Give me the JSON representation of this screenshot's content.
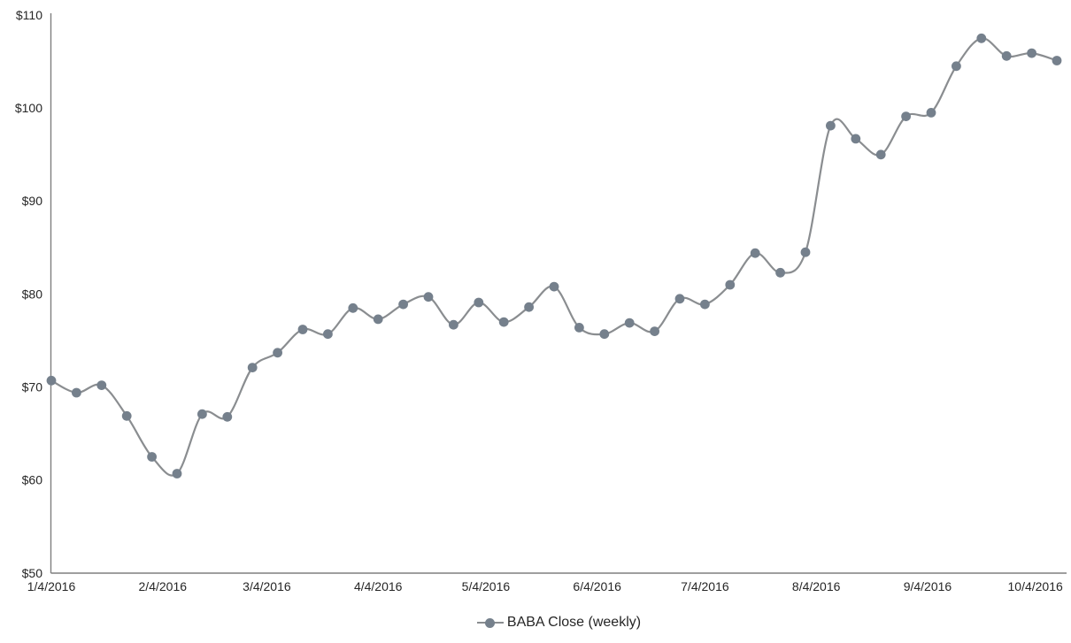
{
  "chart": {
    "legend_label": "BABA Close (weekly)",
    "colors": {
      "series_line": "#8A8D90",
      "series_marker": "#75808C",
      "axis_line": "#7F7F7F",
      "tick_text": "#262626",
      "background": "#FFFFFF"
    }
  },
  "chart_data": {
    "type": "line",
    "title": "",
    "xlabel": "",
    "ylabel": "",
    "ylim": [
      50,
      110
    ],
    "grid": false,
    "smooth": true,
    "marker": "circle",
    "legend_position": "bottom",
    "y_ticks": [
      {
        "v": 50,
        "label": "$50"
      },
      {
        "v": 60,
        "label": "$60"
      },
      {
        "v": 70,
        "label": "$70"
      },
      {
        "v": 80,
        "label": "$80"
      },
      {
        "v": 90,
        "label": "$90"
      },
      {
        "v": 100,
        "label": "$100"
      },
      {
        "v": 110,
        "label": "$110"
      }
    ],
    "x_ticks": [
      {
        "date": "1/4/2016",
        "label": "1/4/2016"
      },
      {
        "date": "2/4/2016",
        "label": "2/4/2016"
      },
      {
        "date": "3/4/2016",
        "label": "3/4/2016"
      },
      {
        "date": "4/4/2016",
        "label": "4/4/2016"
      },
      {
        "date": "5/4/2016",
        "label": "5/4/2016"
      },
      {
        "date": "6/4/2016",
        "label": "6/4/2016"
      },
      {
        "date": "7/4/2016",
        "label": "7/4/2016"
      },
      {
        "date": "8/4/2016",
        "label": "8/4/2016"
      },
      {
        "date": "9/4/2016",
        "label": "9/4/2016"
      },
      {
        "date": "10/4/2016",
        "label": "10/4/2016"
      }
    ],
    "series": [
      {
        "name": "BABA Close (weekly)",
        "x": [
          "1/4/2016",
          "1/11/2016",
          "1/18/2016",
          "1/25/2016",
          "2/1/2016",
          "2/8/2016",
          "2/15/2016",
          "2/22/2016",
          "2/29/2016",
          "3/7/2016",
          "3/14/2016",
          "3/21/2016",
          "3/28/2016",
          "4/4/2016",
          "4/11/2016",
          "4/18/2016",
          "4/25/2016",
          "5/2/2016",
          "5/9/2016",
          "5/16/2016",
          "5/23/2016",
          "5/30/2016",
          "6/6/2016",
          "6/13/2016",
          "6/20/2016",
          "6/27/2016",
          "7/4/2016",
          "7/11/2016",
          "7/18/2016",
          "7/25/2016",
          "8/1/2016",
          "8/8/2016",
          "8/15/2016",
          "8/22/2016",
          "8/29/2016",
          "9/5/2016",
          "9/12/2016",
          "9/19/2016",
          "9/26/2016",
          "10/3/2016",
          "10/10/2016"
        ],
        "values": [
          70.7,
          69.4,
          70.2,
          66.9,
          62.5,
          60.7,
          67.1,
          66.8,
          72.1,
          73.7,
          76.2,
          75.7,
          78.5,
          77.3,
          78.9,
          79.7,
          76.7,
          79.1,
          77.0,
          78.6,
          80.8,
          76.4,
          75.7,
          76.9,
          76.0,
          79.5,
          78.9,
          81.0,
          84.4,
          82.3,
          84.5,
          98.1,
          96.7,
          95.0,
          99.1,
          99.5,
          104.5,
          107.5,
          105.6,
          105.9,
          105.1
        ]
      }
    ]
  }
}
